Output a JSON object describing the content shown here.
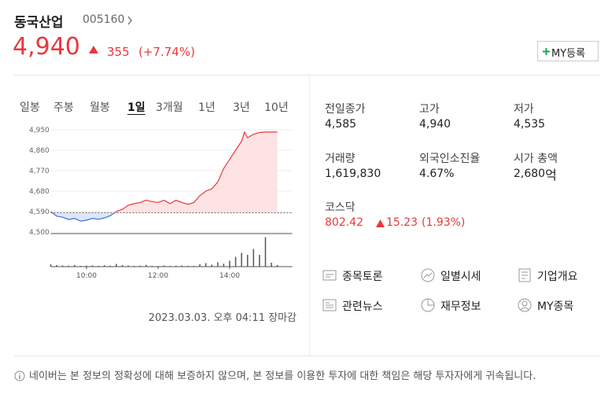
{
  "header": {
    "name": "동국산업",
    "code": "005160"
  },
  "quote": {
    "price": "4,940",
    "change": "355",
    "change_rate": "(+7.74%)",
    "my_button": "MY등록"
  },
  "periods": [
    "일봉",
    "주봉",
    "월봉",
    "1일",
    "3개월",
    "1년",
    "3년",
    "10년"
  ],
  "selected_period": "1일",
  "chart_data": {
    "type": "line",
    "x": [
      0,
      10,
      20,
      30,
      40,
      50,
      60,
      70,
      80,
      90,
      100,
      110,
      120,
      130,
      140,
      150,
      160,
      170,
      180,
      190,
      200,
      210,
      220,
      230,
      240,
      250,
      260,
      270,
      280,
      290,
      300,
      310,
      320,
      325,
      330,
      340,
      350,
      360,
      370,
      380
    ],
    "values": [
      4590,
      4570,
      4565,
      4555,
      4560,
      4548,
      4552,
      4560,
      4556,
      4562,
      4572,
      4590,
      4600,
      4618,
      4625,
      4630,
      4640,
      4634,
      4630,
      4640,
      4625,
      4640,
      4630,
      4622,
      4630,
      4660,
      4680,
      4690,
      4720,
      4780,
      4820,
      4860,
      4900,
      4940,
      4915,
      4930,
      4938,
      4940,
      4940,
      4940
    ],
    "xlim": [
      0,
      405
    ],
    "ylim": [
      4500,
      4950
    ],
    "yticks": [
      {
        "value": 4950,
        "label": "4,950"
      },
      {
        "value": 4860,
        "label": "4,860"
      },
      {
        "value": 4770,
        "label": "4,770"
      },
      {
        "value": 4680,
        "label": "4,680"
      },
      {
        "value": 4590,
        "label": "4,590"
      },
      {
        "value": 4500,
        "label": "4,500"
      }
    ],
    "xticks": [
      {
        "value": 60,
        "label": "10:00"
      },
      {
        "value": 180,
        "label": "12:00"
      },
      {
        "value": 300,
        "label": "14:00"
      }
    ],
    "baseline": 4585,
    "up_color": "#e8383d",
    "down_color": "#3d6fdc",
    "volume": {
      "x": [
        0,
        10,
        20,
        30,
        40,
        50,
        60,
        70,
        80,
        90,
        100,
        110,
        120,
        130,
        140,
        150,
        160,
        170,
        180,
        190,
        200,
        210,
        220,
        230,
        240,
        250,
        260,
        270,
        280,
        290,
        300,
        310,
        320,
        330,
        340,
        350,
        360,
        370,
        380
      ],
      "values": [
        12000,
        8000,
        6000,
        5000,
        9000,
        4000,
        5000,
        6000,
        4000,
        7000,
        5000,
        14000,
        8000,
        6000,
        4000,
        5000,
        9000,
        4000,
        3000,
        6000,
        4000,
        5000,
        6000,
        4000,
        4000,
        12000,
        18000,
        10000,
        22000,
        15000,
        30000,
        50000,
        70000,
        60000,
        90000,
        60000,
        150000,
        20000,
        8000
      ],
      "ylim": [
        0,
        160000
      ],
      "color": "#555555"
    }
  },
  "timestamp": "2023.03.03. 오후 04:11 장마감",
  "stats": [
    {
      "label": "전일종가",
      "value": "4,585"
    },
    {
      "label": "고가",
      "value": "4,940"
    },
    {
      "label": "저가",
      "value": "4,535"
    },
    {
      "label": "거래량",
      "value": "1,619,830"
    },
    {
      "label": "외국인소진율",
      "value": "4.67%"
    },
    {
      "label": "시가 총액",
      "value": "2,680",
      "unit": "억"
    }
  ],
  "index": {
    "name": "코스닥",
    "value": "802.42",
    "change": "15.23",
    "rate": "(1.93%)"
  },
  "links": [
    "종목토론",
    "일별시세",
    "기업개요",
    "관련뉴스",
    "재무정보",
    "MY종목"
  ],
  "notice": "네이버는 본 정보의 정확성에 대해 보증하지 않으며, 본 정보를 이용한 투자에 대한 책임은 해당 투자자에게 귀속됩니다."
}
